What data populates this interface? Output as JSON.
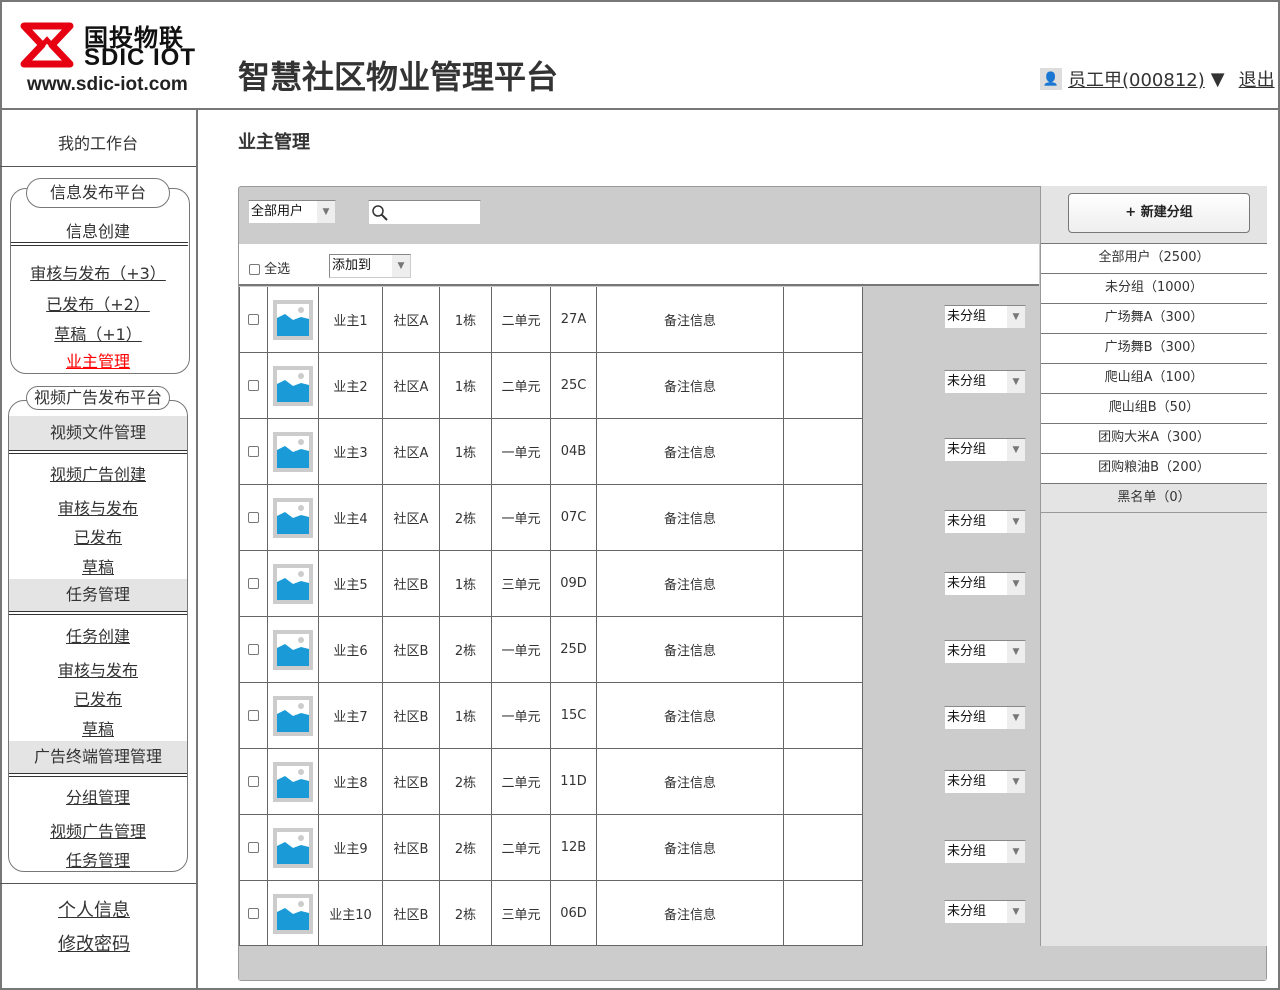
{
  "header": {
    "logo_cn": "国投物联",
    "logo_en": "SDIC IOT",
    "logo_url": "www.sdic-iot.com",
    "app_title": "智慧社区物业管理平台",
    "user_label": "员工甲(000812)",
    "user_dropdown": "▼",
    "logout": "退出"
  },
  "sidebar": {
    "workbench": "我的工作台",
    "info_platform": {
      "title": "信息发布平台",
      "create": "信息创建",
      "items": [
        "审核与发布（+3）",
        "已发布（+2）",
        "草稿（+1）",
        "业主管理"
      ]
    },
    "video_platform": {
      "title": "视频广告发布平台",
      "sections": [
        {
          "title": "视频文件管理",
          "items": [
            "视频广告创建",
            "审核与发布",
            "已发布",
            "草稿"
          ]
        },
        {
          "title": "任务管理",
          "items": [
            "任务创建",
            "审核与发布",
            "已发布",
            "草稿"
          ]
        },
        {
          "title": "广告终端管理管理",
          "items": [
            "分组管理",
            "视频广告管理",
            "任务管理"
          ]
        }
      ]
    },
    "personal": "个人信息",
    "change_password": "修改密码"
  },
  "main": {
    "title": "业主管理",
    "filter_select": "全部用户",
    "search_placeholder": "",
    "select_all": "全选",
    "add_to_select": "添加到",
    "rows": [
      {
        "name": "业主1",
        "community": "社区A",
        "building": "1栋",
        "unit": "二单元",
        "room": "27A",
        "remark": "备注信息",
        "group": "未分组"
      },
      {
        "name": "业主2",
        "community": "社区A",
        "building": "1栋",
        "unit": "二单元",
        "room": "25C",
        "remark": "备注信息",
        "group": "未分组"
      },
      {
        "name": "业主3",
        "community": "社区A",
        "building": "1栋",
        "unit": "一单元",
        "room": "04B",
        "remark": "备注信息",
        "group": "未分组"
      },
      {
        "name": "业主4",
        "community": "社区A",
        "building": "2栋",
        "unit": "一单元",
        "room": "07C",
        "remark": "备注信息",
        "group": "未分组"
      },
      {
        "name": "业主5",
        "community": "社区B",
        "building": "1栋",
        "unit": "三单元",
        "room": "09D",
        "remark": "备注信息",
        "group": "未分组"
      },
      {
        "name": "业主6",
        "community": "社区B",
        "building": "2栋",
        "unit": "一单元",
        "room": "25D",
        "remark": "备注信息",
        "group": "未分组"
      },
      {
        "name": "业主7",
        "community": "社区B",
        "building": "1栋",
        "unit": "一单元",
        "room": "15C",
        "remark": "备注信息",
        "group": "未分组"
      },
      {
        "name": "业主8",
        "community": "社区B",
        "building": "2栋",
        "unit": "二单元",
        "room": "11D",
        "remark": "备注信息",
        "group": "未分组"
      },
      {
        "name": "业主9",
        "community": "社区B",
        "building": "2栋",
        "unit": "二单元",
        "room": "12B",
        "remark": "备注信息",
        "group": "未分组"
      },
      {
        "name": "业主10",
        "community": "社区B",
        "building": "2栋",
        "unit": "三单元",
        "room": "06D",
        "remark": "备注信息",
        "group": "未分组"
      }
    ]
  },
  "groups": {
    "new_group": "+ 新建分组",
    "items": [
      "全部用户（2500）",
      "未分组（1000）",
      "广场舞A（300）",
      "广场舞B（300）",
      "爬山组A（100）",
      "爬山组B（50）",
      "团购大米A（300）",
      "团购粮油B（200）",
      "黑名单（0）"
    ]
  },
  "colors": {
    "active_link": "#ff0000",
    "image_blue": "#1a9ad6",
    "logo_red": "#e60012",
    "panel_gray": "#cccccc"
  }
}
